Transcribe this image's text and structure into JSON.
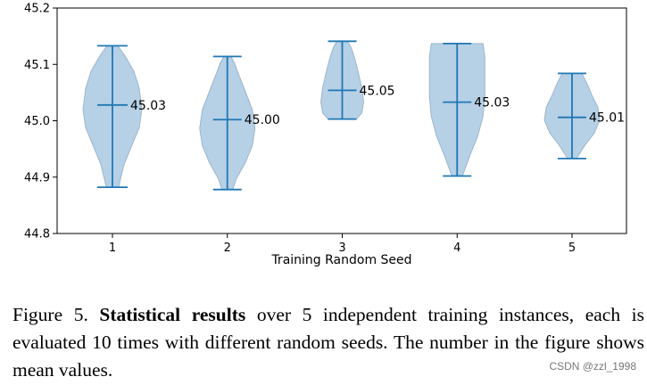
{
  "chart_data": {
    "type": "violin",
    "xlabel": "Training Random Seed",
    "ylabel": "",
    "ylim": [
      44.8,
      45.2
    ],
    "yticks": [
      "44.8",
      "44.9",
      "45.0",
      "45.1",
      "45.2"
    ],
    "categories": [
      "1",
      "2",
      "3",
      "4",
      "5"
    ],
    "violins": [
      {
        "seed": "1",
        "min": 44.882,
        "max": 45.133,
        "mean": 45.028,
        "mean_label": "45.03"
      },
      {
        "seed": "2",
        "min": 44.878,
        "max": 45.114,
        "mean": 45.002,
        "mean_label": "45.00"
      },
      {
        "seed": "3",
        "min": 45.003,
        "max": 45.141,
        "mean": 45.054,
        "mean_label": "45.05"
      },
      {
        "seed": "4",
        "min": 44.902,
        "max": 45.137,
        "mean": 45.033,
        "mean_label": "45.03"
      },
      {
        "seed": "5",
        "min": 44.933,
        "max": 45.084,
        "mean": 45.006,
        "mean_label": "45.01"
      }
    ],
    "grid": false,
    "colors": {
      "fill": "#b6d0e6",
      "edge": "#9eb6cb",
      "line": "#1f77b4"
    }
  },
  "caption": {
    "label": "Figure 5.",
    "bold": "Statistical results",
    "text": "over 5 independent training instances, each is evaluated 10 times with different random seeds. The number in the figure shows mean values."
  },
  "watermark": "CSDN @zzl_1998"
}
